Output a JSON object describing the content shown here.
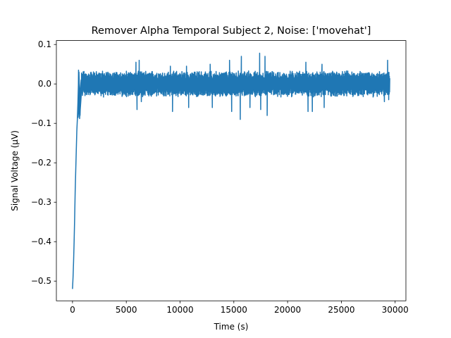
{
  "chart_data": {
    "type": "line",
    "title": "Remover Alpha Temporal Subject 2, Noise: ['movehat']",
    "xlabel": "Time (s)",
    "ylabel": "Signal Voltage (μV)",
    "xlim": [
      -1500,
      31000
    ],
    "ylim": [
      -0.55,
      0.11
    ],
    "xticks": [
      0,
      5000,
      10000,
      15000,
      20000,
      25000,
      30000
    ],
    "yticks": [
      -0.5,
      -0.4,
      -0.3,
      -0.2,
      -0.1,
      0.0,
      0.1
    ],
    "xtick_labels": [
      "0",
      "5000",
      "10000",
      "15000",
      "20000",
      "25000",
      "30000"
    ],
    "ytick_labels": [
      "−0.5",
      "−0.4",
      "−0.3",
      "−0.2",
      "−0.1",
      "0.0",
      "0.1"
    ],
    "grid": false,
    "color": "#1f77b4",
    "series": [
      {
        "x_range": [
          0,
          29500
        ],
        "n_points": 1500,
        "description_points": [
          [
            0,
            -0.52
          ],
          [
            50,
            -0.49
          ],
          [
            100,
            -0.45
          ],
          [
            150,
            -0.4
          ],
          [
            200,
            -0.34
          ],
          [
            250,
            -0.27
          ],
          [
            300,
            -0.22
          ],
          [
            350,
            -0.17
          ],
          [
            400,
            -0.12
          ],
          [
            450,
            -0.09
          ],
          [
            500,
            -0.05
          ],
          [
            550,
            0.0
          ],
          [
            600,
            0.03
          ],
          [
            650,
            -0.02
          ],
          [
            700,
            -0.08
          ],
          [
            750,
            -0.04
          ],
          [
            800,
            0.01
          ]
        ],
        "baseline": 0.0,
        "amplitude": 0.03,
        "spikes": [
          [
            520,
            -0.085
          ],
          [
            560,
            0.035
          ],
          [
            660,
            -0.088
          ],
          [
            5900,
            0.055
          ],
          [
            6000,
            -0.065
          ],
          [
            6200,
            0.06
          ],
          [
            6400,
            -0.045
          ],
          [
            9100,
            0.045
          ],
          [
            9300,
            -0.07
          ],
          [
            10600,
            0.045
          ],
          [
            10800,
            -0.06
          ],
          [
            12800,
            0.05
          ],
          [
            13000,
            -0.06
          ],
          [
            14600,
            0.06
          ],
          [
            14800,
            -0.07
          ],
          [
            15600,
            -0.09
          ],
          [
            15700,
            0.07
          ],
          [
            16500,
            -0.06
          ],
          [
            17400,
            0.078
          ],
          [
            17500,
            -0.065
          ],
          [
            17900,
            0.07
          ],
          [
            18100,
            -0.08
          ],
          [
            21700,
            0.055
          ],
          [
            21900,
            -0.07
          ],
          [
            22300,
            -0.07
          ],
          [
            23200,
            0.05
          ],
          [
            23400,
            -0.06
          ],
          [
            29000,
            -0.045
          ],
          [
            29300,
            0.06
          ],
          [
            29400,
            -0.04
          ]
        ]
      }
    ]
  }
}
